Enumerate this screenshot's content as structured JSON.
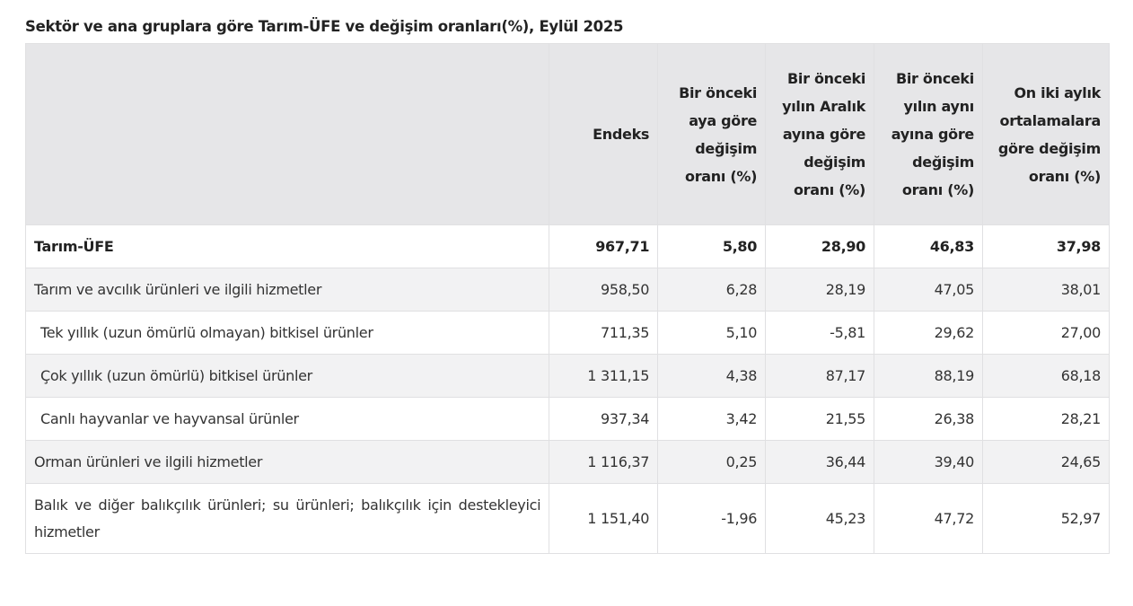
{
  "title": "Sektör ve ana gruplara göre Tarım-ÜFE ve değişim oranları(%), Eylül 2025",
  "table": {
    "headers": [
      "",
      "Endeks",
      "Bir önceki aya göre değişim oranı (%)",
      "Bir önceki yılın Aralık ayına göre değişim oranı (%)",
      "Bir önceki yılın aynı ayına göre değişim oranı (%)",
      "On iki aylık ortalamalara göre değişim oranı (%)"
    ],
    "rows": [
      {
        "name": "Tarım-ÜFE",
        "values": [
          "967,71",
          "5,80",
          "28,90",
          "46,83",
          "37,98"
        ]
      },
      {
        "name": "Tarım ve avcılık ürünleri ve ilgili hizmetler",
        "values": [
          "958,50",
          "6,28",
          "28,19",
          "47,05",
          "38,01"
        ]
      },
      {
        "name": "Tek yıllık (uzun ömürlü olmayan) bitkisel ürünler",
        "values": [
          "711,35",
          "5,10",
          "-5,81",
          "29,62",
          "27,00"
        ]
      },
      {
        "name": "Çok yıllık (uzun ömürlü) bitkisel ürünler",
        "values": [
          "1 311,15",
          "4,38",
          "87,17",
          "88,19",
          "68,18"
        ]
      },
      {
        "name": "Canlı hayvanlar ve hayvansal ürünler",
        "values": [
          "937,34",
          "3,42",
          "21,55",
          "26,38",
          "28,21"
        ]
      },
      {
        "name": "Orman ürünleri ve ilgili hizmetler",
        "values": [
          "1 116,37",
          "0,25",
          "36,44",
          "39,40",
          "24,65"
        ]
      },
      {
        "name": "Balık ve diğer balıkçılık ürünleri; su ürünleri; balıkçılık için destekleyici hizmetler",
        "values": [
          "1 151,40",
          "-1,96",
          "45,23",
          "47,72",
          "52,97"
        ]
      }
    ]
  }
}
